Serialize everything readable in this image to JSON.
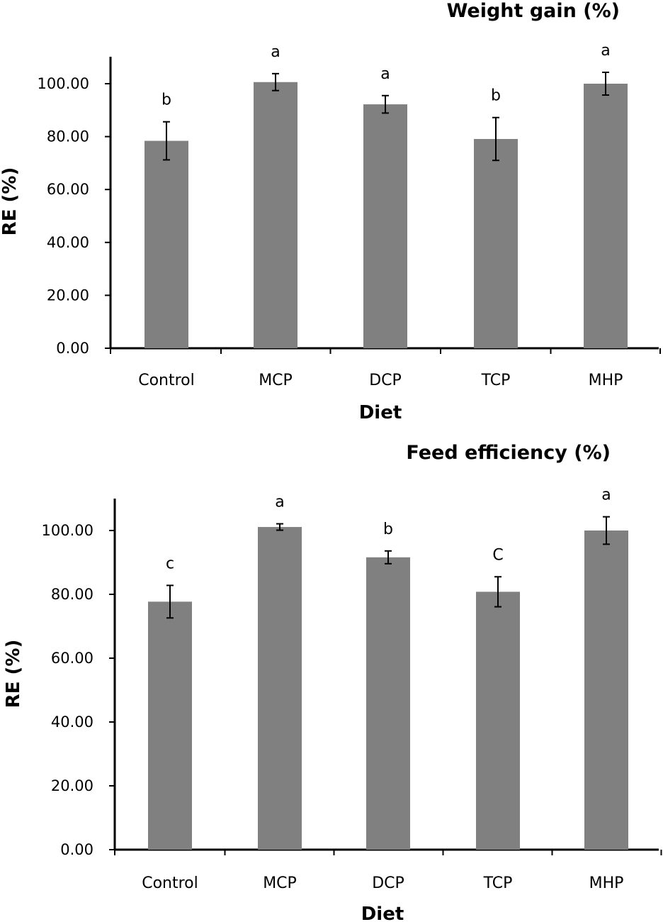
{
  "colors": {
    "bar": "#808080",
    "axis": "#000000",
    "error_bar": "#000000"
  },
  "chart_data": [
    {
      "type": "bar",
      "title": "Weight gain (%)",
      "xlabel": "Diet",
      "ylabel": "RE (%)",
      "ylim": [
        0,
        110
      ],
      "yticks": [
        0,
        20,
        40,
        60,
        80,
        100
      ],
      "ytick_labels": [
        "0.00",
        "20.00",
        "40.00",
        "60.00",
        "80.00",
        "100.00"
      ],
      "categories": [
        "Control",
        "MCP",
        "DCP",
        "TCP",
        "MHP"
      ],
      "values": [
        78.4,
        100.6,
        92.2,
        79.1,
        100.0
      ],
      "errors": [
        7.2,
        3.2,
        3.3,
        8.1,
        4.3
      ],
      "significance": [
        "b",
        "a",
        "a",
        "b",
        "a"
      ]
    },
    {
      "type": "bar",
      "title": "Feed efficiency (%)",
      "xlabel": "Diet",
      "ylabel": "RE (%)",
      "ylim": [
        0,
        110
      ],
      "yticks": [
        0,
        20,
        40,
        60,
        80,
        100
      ],
      "ytick_labels": [
        "0.00",
        "20.00",
        "40.00",
        "60.00",
        "80.00",
        "100.00"
      ],
      "categories": [
        "Control",
        "MCP",
        "DCP",
        "TCP",
        "MHP"
      ],
      "values": [
        77.7,
        101.1,
        91.6,
        80.8,
        100.0
      ],
      "errors": [
        5.1,
        1.0,
        2.0,
        4.7,
        4.3
      ],
      "significance": [
        "c",
        "a",
        "b",
        "C",
        "a"
      ]
    }
  ]
}
